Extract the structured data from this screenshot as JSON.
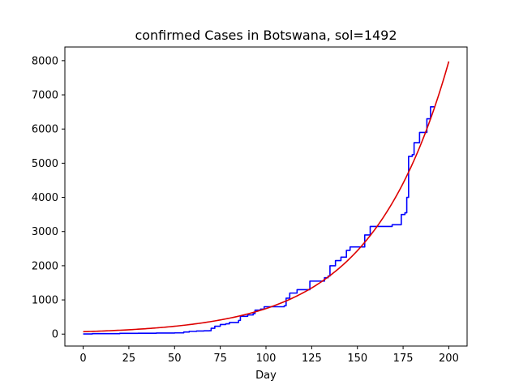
{
  "chart_data": {
    "type": "line",
    "title": "confirmed Cases in Botswana, sol=1492",
    "xlabel": "Day",
    "ylabel": "",
    "xlim": [
      -10,
      210
    ],
    "ylim": [
      -350,
      8400
    ],
    "xticks": [
      0,
      25,
      50,
      75,
      100,
      125,
      150,
      175,
      200
    ],
    "yticks": [
      0,
      1000,
      2000,
      3000,
      4000,
      5000,
      6000,
      7000,
      8000
    ],
    "grid": false,
    "legend": "none",
    "series": [
      {
        "color": "#0000ff",
        "style": "step",
        "points": [
          [
            0,
            4
          ],
          [
            5,
            13
          ],
          [
            20,
            22
          ],
          [
            30,
            25
          ],
          [
            40,
            30
          ],
          [
            50,
            35
          ],
          [
            55,
            60
          ],
          [
            58,
            80
          ],
          [
            62,
            90
          ],
          [
            66,
            95
          ],
          [
            69,
            100
          ],
          [
            70,
            170
          ],
          [
            72,
            230
          ],
          [
            75,
            280
          ],
          [
            78,
            300
          ],
          [
            80,
            340
          ],
          [
            85,
            400
          ],
          [
            86,
            520
          ],
          [
            90,
            560
          ],
          [
            93,
            600
          ],
          [
            94,
            700
          ],
          [
            97,
            730
          ],
          [
            99,
            800
          ],
          [
            105,
            800
          ],
          [
            110,
            830
          ],
          [
            111,
            1050
          ],
          [
            113,
            1200
          ],
          [
            117,
            1300
          ],
          [
            124,
            1550
          ],
          [
            130,
            1550
          ],
          [
            132,
            1650
          ],
          [
            134,
            1700
          ],
          [
            135,
            2000
          ],
          [
            137,
            2000
          ],
          [
            138,
            2150
          ],
          [
            141,
            2250
          ],
          [
            144,
            2450
          ],
          [
            146,
            2550
          ],
          [
            152,
            2550
          ],
          [
            154,
            2900
          ],
          [
            157,
            3150
          ],
          [
            163,
            3150
          ],
          [
            168,
            3150
          ],
          [
            169,
            3200
          ],
          [
            173,
            3200
          ],
          [
            174,
            3500
          ],
          [
            176,
            3550
          ],
          [
            177,
            4000
          ],
          [
            178,
            5200
          ],
          [
            180,
            5250
          ],
          [
            181,
            5600
          ],
          [
            184,
            5900
          ],
          [
            188,
            6300
          ],
          [
            190,
            6650
          ],
          [
            192,
            6650
          ]
        ]
      },
      {
        "color": "#dd0000",
        "style": "line",
        "model": {
          "a": 70,
          "b": 0.02368,
          "x_start": 0,
          "x_end": 200
        }
      }
    ]
  }
}
